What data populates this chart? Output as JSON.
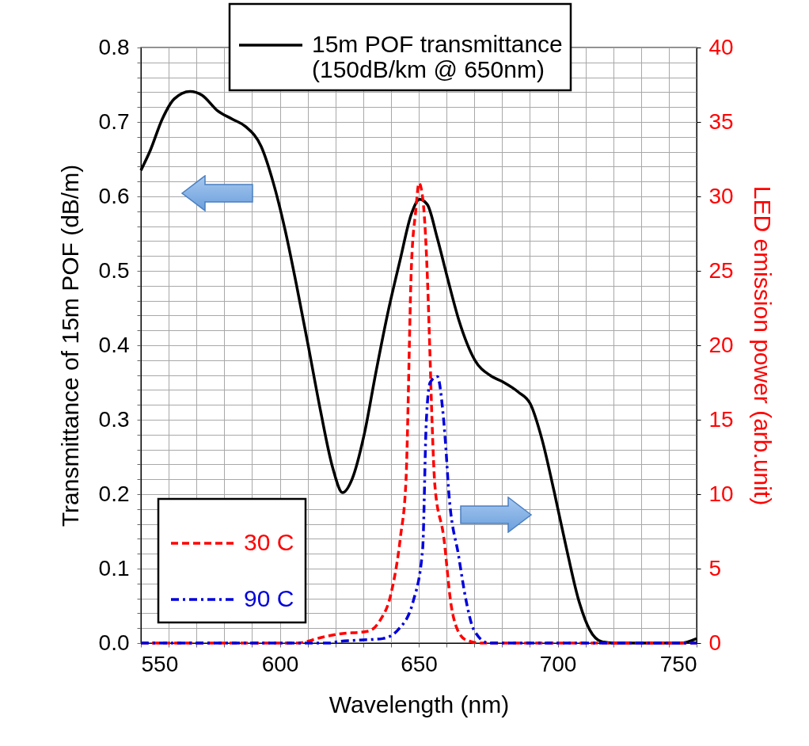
{
  "chart_data": {
    "type": "line",
    "xlabel": "Wavelength  (nm)",
    "ylabel": "Transmittance of  15m POF  (dB/m)",
    "y2label": "LED emission power  (arb.unit)",
    "xlim": [
      550,
      750
    ],
    "ylim": [
      0,
      0.8
    ],
    "y2lim": [
      0,
      40
    ],
    "xticks": [
      550,
      {
        "value": 560,
        "label": null
      },
      {
        "value": 570,
        "label": null
      },
      {
        "value": 580,
        "label": null
      },
      {
        "value": 590,
        "label": null
      },
      600,
      {
        "value": 610,
        "label": null
      },
      {
        "value": 620,
        "label": null
      },
      {
        "value": 630,
        "label": null
      },
      {
        "value": 640,
        "label": null
      },
      650,
      {
        "value": 660,
        "label": null
      },
      {
        "value": 670,
        "label": null
      },
      {
        "value": 680,
        "label": null
      },
      {
        "value": 690,
        "label": null
      },
      700,
      {
        "value": 710,
        "label": null
      },
      {
        "value": 720,
        "label": null
      },
      {
        "value": 730,
        "label": null
      },
      {
        "value": 740,
        "label": null
      },
      750
    ],
    "yticks": [
      {
        "value": 0,
        "label": "0.0"
      },
      {
        "value": 0.02,
        "label": null
      },
      {
        "value": 0.04,
        "label": null
      },
      {
        "value": 0.06,
        "label": null
      },
      {
        "value": 0.08,
        "label": null
      },
      0.1,
      {
        "value": 0.12,
        "label": null
      },
      {
        "value": 0.14,
        "label": null
      },
      {
        "value": 0.16,
        "label": null
      },
      {
        "value": 0.18,
        "label": null
      },
      0.2,
      {
        "value": 0.22,
        "label": null
      },
      {
        "value": 0.24,
        "label": null
      },
      {
        "value": 0.26,
        "label": null
      },
      {
        "value": 0.28,
        "label": null
      },
      0.3,
      {
        "value": 0.32,
        "label": null
      },
      {
        "value": 0.34,
        "label": null
      },
      {
        "value": 0.36,
        "label": null
      },
      {
        "value": 0.38,
        "label": null
      },
      0.4,
      {
        "value": 0.42,
        "label": null
      },
      {
        "value": 0.44,
        "label": null
      },
      {
        "value": 0.46,
        "label": null
      },
      {
        "value": 0.48,
        "label": null
      },
      0.5,
      {
        "value": 0.52,
        "label": null
      },
      {
        "value": 0.54,
        "label": null
      },
      {
        "value": 0.56,
        "label": null
      },
      {
        "value": 0.58,
        "label": null
      },
      0.6,
      {
        "value": 0.62,
        "label": null
      },
      {
        "value": 0.64,
        "label": null
      },
      {
        "value": 0.66,
        "label": null
      },
      {
        "value": 0.68,
        "label": null
      },
      0.7,
      {
        "value": 0.72,
        "label": null
      },
      {
        "value": 0.74,
        "label": null
      },
      {
        "value": 0.76,
        "label": null
      },
      {
        "value": 0.78,
        "label": null
      },
      0.8
    ],
    "y2ticks": [
      0,
      5,
      10,
      15,
      20,
      25,
      30,
      35,
      40
    ],
    "grid": true,
    "legend": "left",
    "marker": "none",
    "series": [
      {
        "name": "15m POF transmittance\n(150dB/km @ 650nm)",
        "color": "#000000",
        "line_style": "solid",
        "x": [
          550,
          553.4,
          557.7,
          562,
          567.7,
          572,
          577.6,
          582.8,
          587.6,
          593.3,
          597.6,
          601.9,
          606,
          610.4,
          614.7,
          619,
          622.6,
          626,
          630.3,
          634.6,
          638.9,
          643.2,
          647.4,
          650.3,
          653.1,
          656.6,
          660.3,
          664.5,
          670.2,
          675.9,
          680.2,
          685.9,
          690.2,
          694.4,
          698.7,
          703,
          707.3,
          711.5,
          715.8,
          720,
          744.3,
          750
        ],
        "values": [
          0.635,
          0.662,
          0.704,
          0.731,
          0.741,
          0.736,
          0.715,
          0.704,
          0.694,
          0.667,
          0.619,
          0.555,
          0.481,
          0.396,
          0.311,
          0.236,
          0.202,
          0.22,
          0.279,
          0.364,
          0.444,
          0.513,
          0.577,
          0.596,
          0.589,
          0.545,
          0.491,
          0.433,
          0.38,
          0.359,
          0.351,
          0.337,
          0.321,
          0.273,
          0.204,
          0.13,
          0.061,
          0.018,
          0.002,
          0,
          0,
          0.006
        ]
      },
      {
        "name": "30 C",
        "color": "#ff0000",
        "axis": "y2",
        "line_style": "dashed",
        "x": [
          550,
          600,
          606,
          615.5,
          621,
          631.8,
          636,
          640,
          643.4,
          645.4,
          647.4,
          648.9,
          650.1,
          651.7,
          653.1,
          653.9,
          654.8,
          655.8,
          659,
          661.7,
          663.7,
          667.1,
          672.5,
          750
        ],
        "values": [
          0,
          0,
          0,
          0.4,
          0.6,
          0.8,
          1.5,
          3.3,
          7.1,
          10.9,
          25.5,
          29,
          30.9,
          29.4,
          24.6,
          20.2,
          14.8,
          10.6,
          7.1,
          2.5,
          1,
          0.2,
          0,
          0
        ]
      },
      {
        "name": "90 C",
        "color": "#0000dd",
        "axis": "y2",
        "line_style": "dashdot",
        "x": [
          550,
          600,
          618,
          621,
          629,
          637,
          642.6,
          648,
          651.4,
          652.7,
          654.1,
          656.7,
          658.6,
          659.8,
          660.7,
          664.4,
          667.1,
          669.8,
          675.2,
          750
        ],
        "values": [
          0,
          0,
          0,
          0.1,
          0.2,
          0.3,
          0.9,
          2.8,
          6.3,
          14.8,
          17.5,
          17.9,
          15.7,
          13,
          10.4,
          5.8,
          2.8,
          0.9,
          0,
          0
        ]
      }
    ]
  }
}
